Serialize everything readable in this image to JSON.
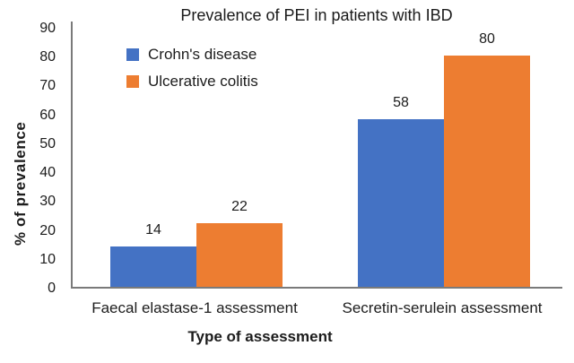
{
  "chart_data": {
    "type": "bar",
    "title": "Prevalence of PEI in patients with IBD",
    "xlabel": "Type of assessment",
    "ylabel": "% of prevalence",
    "categories": [
      "Faecal elastase-1 assessment",
      "Secretin-serulein assessment"
    ],
    "series": [
      {
        "name": "Crohn's disease",
        "color": "#4472C4",
        "values": [
          14,
          58
        ]
      },
      {
        "name": "Ulcerative colitis",
        "color": "#ED7D31",
        "values": [
          22,
          80
        ]
      }
    ],
    "data_labels": [
      [
        14,
        22
      ],
      [
        58,
        80
      ]
    ],
    "ylim": [
      0,
      90
    ],
    "yticks": [
      0,
      10,
      20,
      30,
      40,
      50,
      60,
      70,
      80,
      90
    ],
    "grid": false,
    "legend_position": "top-left-inside",
    "axis_color": "#7a7a7a",
    "text_color": "#1c1c1c"
  }
}
